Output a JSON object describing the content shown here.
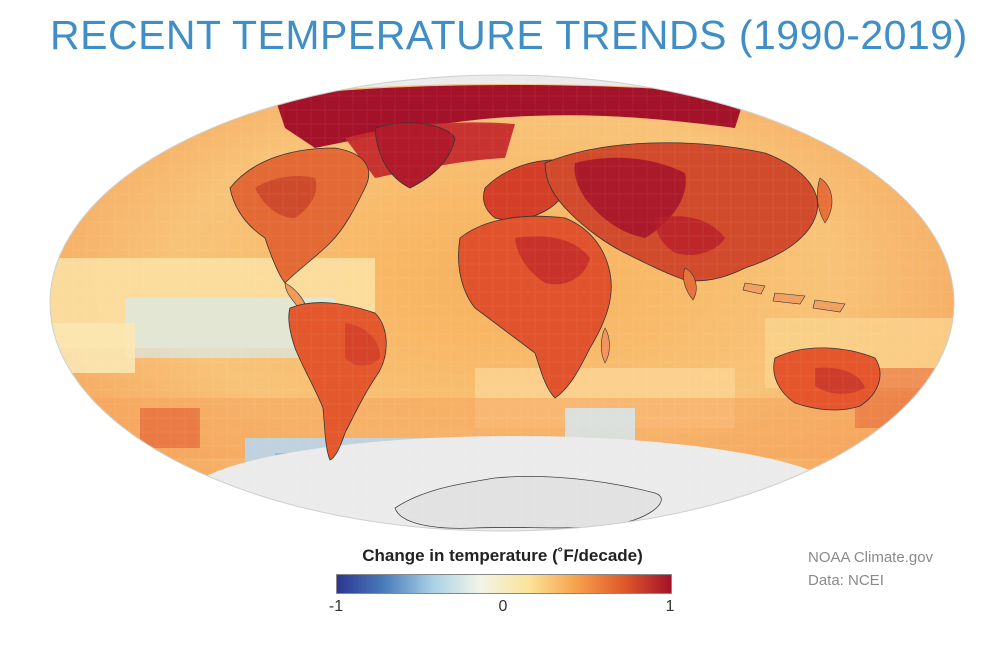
{
  "title": "RECENT TEMPERATURE TRENDS (1990-2019)",
  "legend": {
    "title": "Change in temperature (˚F/decade)",
    "ticks": [
      "-1",
      "0",
      "1"
    ],
    "min": -1,
    "max": 1,
    "colors": [
      "#2d3591",
      "#4a7dbb",
      "#a9d0e6",
      "#f2f4e8",
      "#fbe49a",
      "#f7a24d",
      "#e05a2a",
      "#a4122a"
    ]
  },
  "credit": {
    "source": "NOAA Climate.gov",
    "data": "Data: NCEI"
  },
  "map": {
    "projection": "Robinson (world)",
    "no_data_color": "#e9e9e9",
    "ocean_base_color": "#f8c172",
    "land_outline_color": "#333333"
  }
}
